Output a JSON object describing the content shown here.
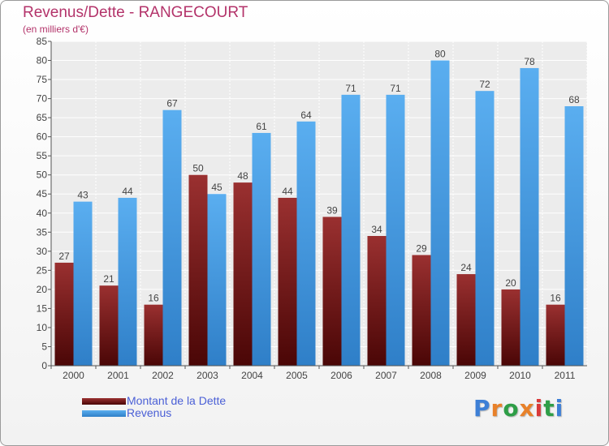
{
  "header": {
    "title": "Revenus/Dette - RANGECOURT",
    "subtitle": "(en milliers d'€)"
  },
  "logo": {
    "text": "Proxiti",
    "colors": [
      "#3d7fd6",
      "#e8812a",
      "#2e9e47",
      "#e8812a",
      "#d93a3a",
      "#2e9e47",
      "#3d7fd6"
    ]
  },
  "chart_data": {
    "type": "bar",
    "categories": [
      "2000",
      "2001",
      "2002",
      "2003",
      "2004",
      "2005",
      "2006",
      "2007",
      "2008",
      "2009",
      "2010",
      "2011"
    ],
    "series": [
      {
        "name": "Montant de la Dette",
        "values": [
          27,
          21,
          16,
          50,
          48,
          44,
          39,
          34,
          29,
          24,
          20,
          16
        ],
        "color": "#7a1a1a"
      },
      {
        "name": "Revenus",
        "values": [
          43,
          44,
          67,
          45,
          61,
          64,
          71,
          71,
          80,
          72,
          78,
          68
        ],
        "color": "#4a9ee6"
      }
    ],
    "ylim": [
      0,
      85
    ],
    "yticks": [
      0,
      5,
      10,
      15,
      20,
      25,
      30,
      35,
      40,
      45,
      50,
      55,
      60,
      65,
      70,
      75,
      80,
      85
    ],
    "grid": true,
    "legend_position": "bottom-left"
  }
}
